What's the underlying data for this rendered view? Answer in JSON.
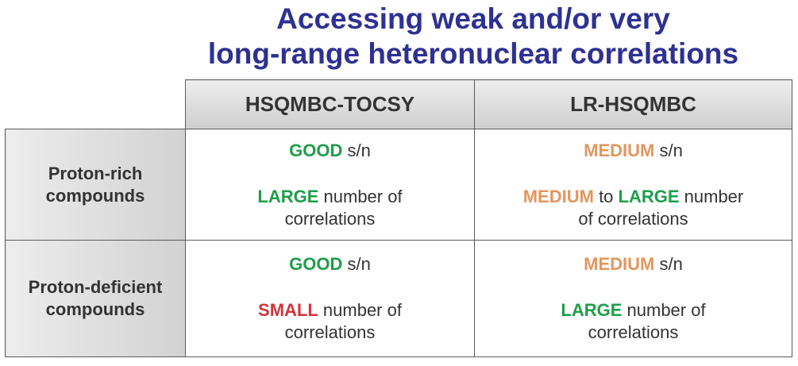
{
  "title": {
    "line1": "Accessing weak and/or very",
    "line2": "long-range heteronuclear correlations"
  },
  "colors": {
    "title": "#2e3192",
    "good_large": "#1e9e4a",
    "medium": "#e3965e",
    "small": "#d1343b"
  },
  "table": {
    "col_headers": [
      "HSQMBC-TOCSY",
      "LR-HSQMBC"
    ],
    "row_headers": [
      {
        "line1": "Proton-rich",
        "line2": "compounds"
      },
      {
        "line1": "Proton-deficient",
        "line2": "compounds"
      }
    ],
    "cells": {
      "r0c0": {
        "sn_word": "GOOD",
        "sn_rest": " s/n",
        "num_word": "LARGE",
        "num_rest1": " number of",
        "num_rest2": "correlations"
      },
      "r0c1": {
        "sn_word": "MEDIUM",
        "sn_rest": " s/n",
        "num_word_a": "MEDIUM",
        "num_mid": " to ",
        "num_word_b": "LARGE",
        "num_rest1": " number",
        "num_rest2": "of correlations"
      },
      "r1c0": {
        "sn_word": "GOOD",
        "sn_rest": " s/n",
        "num_word": "SMALL",
        "num_rest1": " number of",
        "num_rest2": "correlations"
      },
      "r1c1": {
        "sn_word": "MEDIUM",
        "sn_rest": " s/n",
        "num_word": "LARGE",
        "num_rest1": " number of",
        "num_rest2": "correlations"
      }
    }
  }
}
